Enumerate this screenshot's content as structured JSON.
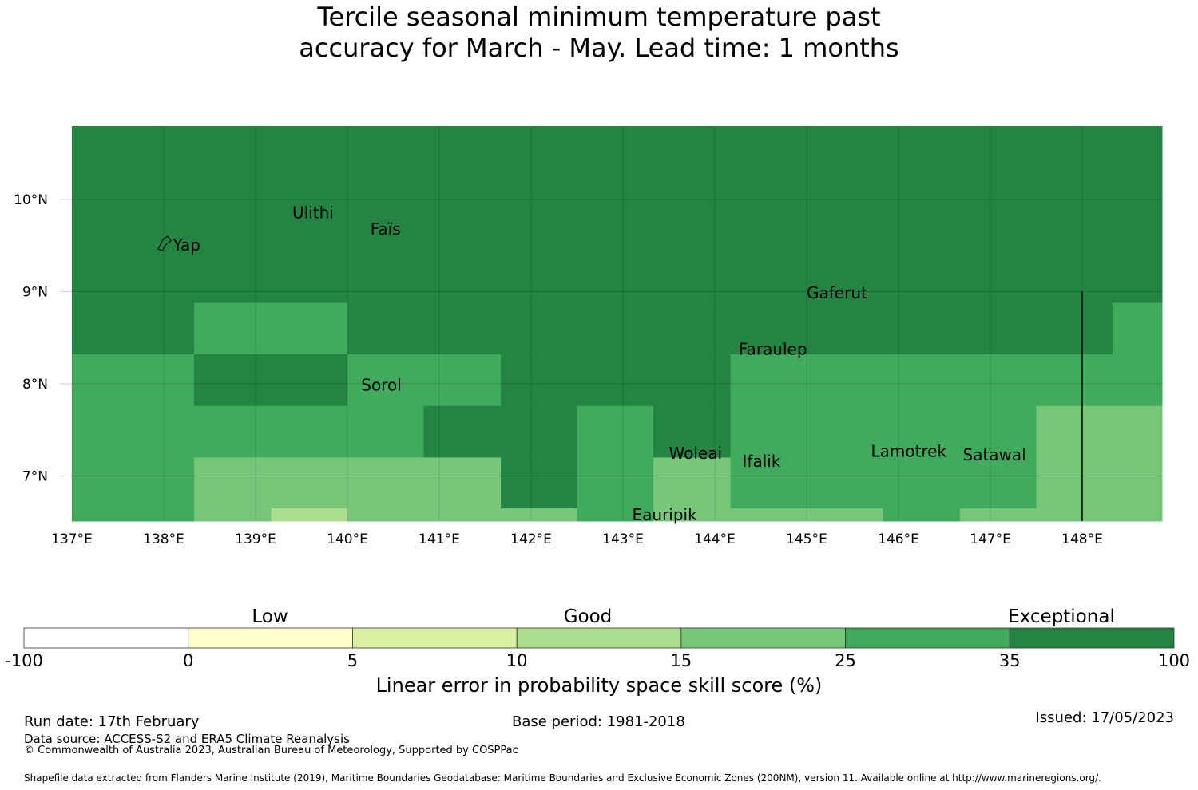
{
  "title": {
    "line1": "Tercile seasonal minimum temperature past",
    "line2": "accuracy for March - May. Lead time: 1 months"
  },
  "map": {
    "lon_range": [
      137,
      149
    ],
    "lat_range": [
      6.5,
      10.8
    ],
    "lon_ticks": [
      "137°E",
      "138°E",
      "139°E",
      "140°E",
      "141°E",
      "142°E",
      "143°E",
      "144°E",
      "145°E",
      "146°E",
      "147°E",
      "148°E"
    ],
    "lat_ticks": [
      "10°N",
      "9°N",
      "8°N",
      "7°N"
    ],
    "places": [
      {
        "name": "Yap",
        "lon": 138.1,
        "lat": 9.5
      },
      {
        "name": "Ulithi",
        "lon": 139.4,
        "lat": 9.85
      },
      {
        "name": "Faïs",
        "lon": 140.25,
        "lat": 9.67
      },
      {
        "name": "Gaferut",
        "lon": 145.0,
        "lat": 8.98
      },
      {
        "name": "Faraulep",
        "lon": 144.26,
        "lat": 8.37
      },
      {
        "name": "Sorol",
        "lon": 140.15,
        "lat": 7.98
      },
      {
        "name": "Woleai",
        "lon": 143.5,
        "lat": 7.24
      },
      {
        "name": "Ifalik",
        "lon": 144.3,
        "lat": 7.15
      },
      {
        "name": "Lamotrek",
        "lon": 145.7,
        "lat": 7.26
      },
      {
        "name": "Satawal",
        "lon": 146.7,
        "lat": 7.22
      },
      {
        "name": "Eauripik",
        "lon": 143.1,
        "lat": 6.57
      }
    ],
    "class_colors": {
      "a": "#238443",
      "b": "#41ab5d",
      "c": "#78c679",
      "d": "#addd8e"
    },
    "grid_columns_lon": [
      137,
      138.33,
      139.17,
      140,
      140.83,
      141.67,
      142.5,
      143.33,
      144.17,
      145,
      145.83,
      146.67,
      147.5,
      148.33,
      149
    ],
    "grid_rows_lat": [
      10.8,
      8.88,
      8.32,
      7.76,
      7.2,
      6.65,
      6.5
    ],
    "cells": [
      [
        "a",
        "a",
        "a",
        "a",
        "a",
        "a",
        "a",
        "a",
        "a",
        "a",
        "a",
        "a",
        "a",
        "a"
      ],
      [
        "a",
        "b",
        "b",
        "a",
        "a",
        "a",
        "a",
        "a",
        "a",
        "a",
        "a",
        "a",
        "a",
        "b"
      ],
      [
        "b",
        "a",
        "a",
        "b",
        "b",
        "a",
        "a",
        "a",
        "b",
        "b",
        "b",
        "b",
        "b",
        "b"
      ],
      [
        "b",
        "b",
        "b",
        "b",
        "a",
        "a",
        "b",
        "a",
        "b",
        "b",
        "b",
        "b",
        "c",
        "c"
      ],
      [
        "b",
        "c",
        "c",
        "c",
        "c",
        "a",
        "b",
        "c",
        "b",
        "b",
        "b",
        "b",
        "c",
        "c"
      ],
      [
        "b",
        "c",
        "d",
        "c",
        "c",
        "c",
        "b",
        "c",
        "c",
        "c",
        "b",
        "c",
        "c",
        "c"
      ]
    ],
    "boundary_line": {
      "lon": 148.0,
      "lat_from": 9.0,
      "lat_to": 6.5
    }
  },
  "colorbar": {
    "categories": [
      "Low",
      "Good",
      "Exceptional"
    ],
    "ticks": [
      "-100",
      "0",
      "5",
      "10",
      "15",
      "25",
      "35",
      "100"
    ],
    "colors": [
      "#ffffff",
      "#ffffcc",
      "#d9f0a3",
      "#addd8e",
      "#78c679",
      "#41ab5d",
      "#238443"
    ],
    "label": "Linear error in probability space skill score (%)"
  },
  "footer": {
    "run_date": "Run date: 17th February",
    "base_period": "Base period: 1981-2018",
    "issued": "Issued: 17/05/2023",
    "data_source": "Data source: ACCESS-S2 and ERA5 Climate Reanalysis",
    "copyright": "© Commonwealth of Australia 2023, Australian Bureau of Meteorology, Supported by COSPPac",
    "shapefile": "Shapefile data extracted from Flanders Marine Institute (2019), Maritime Boundaries Geodatabase: Maritime Boundaries and Exclusive Economic Zones (200NM), version 11. Available online at http://www.marineregions.org/."
  }
}
